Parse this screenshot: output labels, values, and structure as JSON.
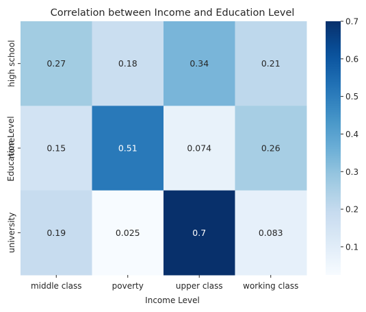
{
  "chart_data": {
    "type": "heatmap",
    "title": "Correlation between Income and Education Level",
    "xlabel": "Income Level",
    "ylabel": "Education Level",
    "x_categories": [
      "middle class",
      "poverty",
      "upper class",
      "working class"
    ],
    "y_categories": [
      "high school",
      "none",
      "university"
    ],
    "values": [
      [
        0.27,
        0.18,
        0.34,
        0.21
      ],
      [
        0.15,
        0.51,
        0.074,
        0.26
      ],
      [
        0.19,
        0.025,
        0.7,
        0.083
      ]
    ],
    "value_labels": [
      [
        "0.27",
        "0.18",
        "0.34",
        "0.21"
      ],
      [
        "0.15",
        "0.51",
        "0.074",
        "0.26"
      ],
      [
        "0.19",
        "0.025",
        "0.7",
        "0.083"
      ]
    ],
    "colormap": "Blues",
    "colorbar": {
      "range": [
        0.025,
        0.7
      ],
      "ticks": [
        0.1,
        0.2,
        0.3,
        0.4,
        0.5,
        0.6,
        0.7
      ],
      "tick_labels": [
        "0.1",
        "0.2",
        "0.3",
        "0.4",
        "0.5",
        "0.6",
        "0.7"
      ]
    }
  }
}
